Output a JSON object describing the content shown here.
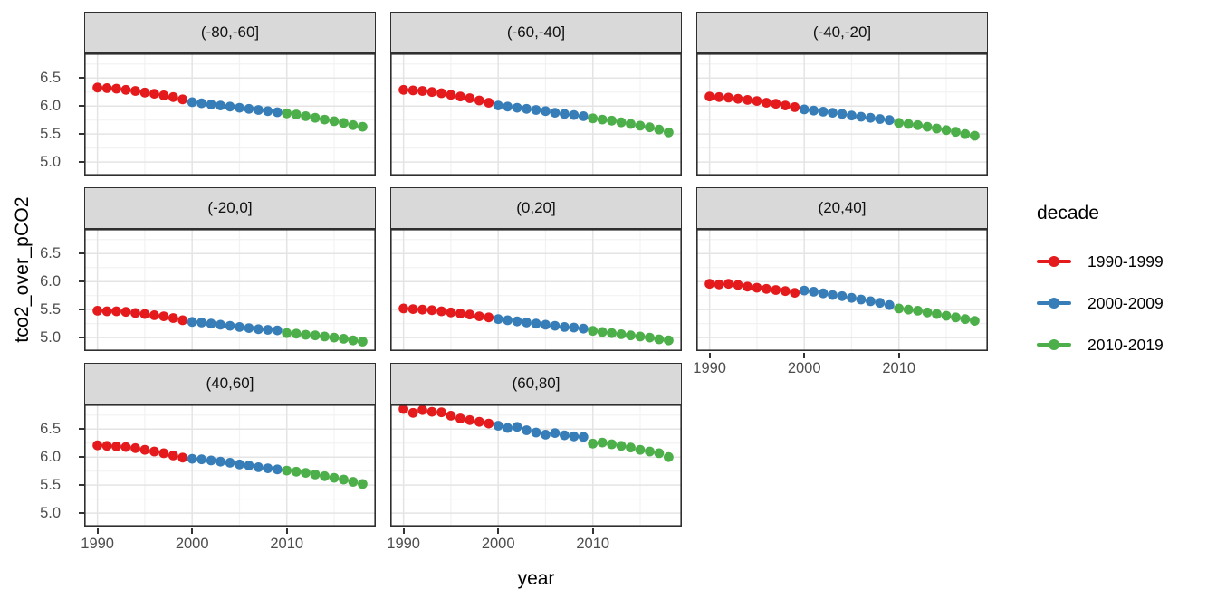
{
  "figure": {
    "y_axis_title": "tco2_over_pCO2",
    "x_axis_title": "year"
  },
  "chart_data": {
    "type": "scatter",
    "title": "",
    "facet_variable": "latitude band",
    "legend_title": "decade",
    "x_label": "year",
    "y_label": "tco2_over_pCO2",
    "x": [
      1990,
      1991,
      1992,
      1993,
      1994,
      1995,
      1996,
      1997,
      1998,
      1999,
      2000,
      2001,
      2002,
      2003,
      2004,
      2005,
      2006,
      2007,
      2008,
      2009,
      2010,
      2011,
      2012,
      2013,
      2014,
      2015,
      2016,
      2017,
      2018
    ],
    "x_range": [
      1988.6,
      2019.4
    ],
    "y_range": [
      4.76,
      6.94
    ],
    "x_major_ticks": [
      1990,
      2000,
      2010
    ],
    "x_minor_ticks": [
      1995,
      2005,
      2015
    ],
    "y_major_ticks": [
      6.5,
      6.0,
      5.5,
      5.0
    ],
    "y_minor_ticks": [
      6.75,
      6.25,
      5.75,
      5.25
    ],
    "y_tick_labels": [
      "6.5",
      "6.0",
      "5.5",
      "5.0"
    ],
    "x_tick_labels": [
      "1990",
      "2000",
      "2010"
    ],
    "grid": true,
    "legend_position": "right",
    "series": [
      {
        "name": "1990-1999",
        "year_span": [
          1990,
          1999
        ],
        "color": "#E41A1C"
      },
      {
        "name": "2000-2009",
        "year_span": [
          2000,
          2009
        ],
        "color": "#377EB8"
      },
      {
        "name": "2010-2019",
        "year_span": [
          2010,
          2019
        ],
        "color": "#4DAF4A"
      }
    ],
    "facets": [
      {
        "label": "(-80,-60]",
        "values": [
          6.33,
          6.32,
          6.31,
          6.29,
          6.27,
          6.24,
          6.22,
          6.19,
          6.16,
          6.12,
          6.07,
          6.05,
          6.03,
          6.01,
          5.99,
          5.97,
          5.95,
          5.93,
          5.91,
          5.89,
          5.87,
          5.85,
          5.82,
          5.79,
          5.76,
          5.73,
          5.7,
          5.66,
          5.63
        ]
      },
      {
        "label": "(-60,-40]",
        "values": [
          6.29,
          6.28,
          6.27,
          6.25,
          6.23,
          6.2,
          6.17,
          6.14,
          6.1,
          6.06,
          6.01,
          5.99,
          5.97,
          5.95,
          5.93,
          5.91,
          5.88,
          5.86,
          5.84,
          5.82,
          5.78,
          5.76,
          5.74,
          5.71,
          5.68,
          5.65,
          5.62,
          5.58,
          5.53
        ]
      },
      {
        "label": "(-40,-20]",
        "values": [
          6.17,
          6.16,
          6.15,
          6.13,
          6.11,
          6.09,
          6.06,
          6.04,
          6.01,
          5.98,
          5.94,
          5.92,
          5.9,
          5.88,
          5.86,
          5.83,
          5.81,
          5.79,
          5.77,
          5.75,
          5.7,
          5.68,
          5.66,
          5.63,
          5.6,
          5.57,
          5.54,
          5.5,
          5.47
        ]
      },
      {
        "label": "(-20,0]",
        "values": [
          5.48,
          5.47,
          5.47,
          5.46,
          5.44,
          5.42,
          5.4,
          5.38,
          5.35,
          5.31,
          5.28,
          5.27,
          5.25,
          5.23,
          5.21,
          5.19,
          5.17,
          5.15,
          5.14,
          5.13,
          5.08,
          5.07,
          5.05,
          5.04,
          5.02,
          5.0,
          4.98,
          4.95,
          4.93
        ]
      },
      {
        "label": "(0,20]",
        "values": [
          5.52,
          5.51,
          5.5,
          5.49,
          5.47,
          5.45,
          5.43,
          5.41,
          5.38,
          5.36,
          5.33,
          5.31,
          5.29,
          5.27,
          5.25,
          5.23,
          5.21,
          5.19,
          5.18,
          5.16,
          5.12,
          5.1,
          5.08,
          5.06,
          5.04,
          5.02,
          5.0,
          4.97,
          4.95
        ]
      },
      {
        "label": "(20,40]",
        "values": [
          5.96,
          5.95,
          5.96,
          5.94,
          5.91,
          5.89,
          5.87,
          5.85,
          5.83,
          5.8,
          5.84,
          5.82,
          5.79,
          5.76,
          5.74,
          5.71,
          5.68,
          5.65,
          5.62,
          5.58,
          5.52,
          5.5,
          5.48,
          5.45,
          5.42,
          5.39,
          5.36,
          5.33,
          5.3
        ]
      },
      {
        "label": "(40,60]",
        "values": [
          6.21,
          6.2,
          6.19,
          6.18,
          6.16,
          6.13,
          6.1,
          6.07,
          6.03,
          5.99,
          5.97,
          5.96,
          5.94,
          5.92,
          5.9,
          5.87,
          5.85,
          5.82,
          5.8,
          5.78,
          5.76,
          5.74,
          5.72,
          5.69,
          5.66,
          5.63,
          5.6,
          5.56,
          5.52
        ]
      },
      {
        "label": "(60,80]",
        "values": [
          6.86,
          6.79,
          6.84,
          6.81,
          6.8,
          6.74,
          6.69,
          6.66,
          6.63,
          6.6,
          6.56,
          6.52,
          6.54,
          6.48,
          6.44,
          6.4,
          6.43,
          6.39,
          6.37,
          6.36,
          6.24,
          6.26,
          6.23,
          6.2,
          6.17,
          6.13,
          6.1,
          6.07,
          6.0
        ]
      }
    ],
    "style_colors": {
      "strip_background": "#d9d9d9",
      "panel_border": "#2f2f2f",
      "grid_major": "#e4e4e4",
      "grid_minor": "#f2f2f2",
      "tick_text": "#4d4d4d"
    }
  }
}
